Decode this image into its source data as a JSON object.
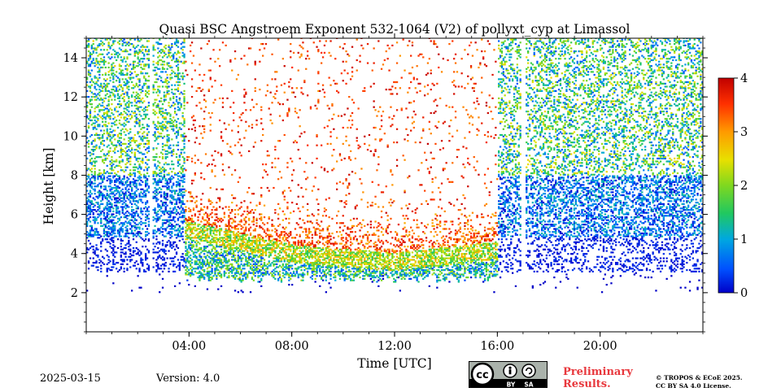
{
  "chart_data": {
    "type": "heatmap",
    "title": "Quasi BSC Angstroem Exponent 532-1064 (V2) of pollyxt_cyp at Limassol",
    "xlabel": "Time [UTC]",
    "ylabel": "Height [km]",
    "xlim": [
      0,
      24
    ],
    "ylim": [
      0,
      15
    ],
    "x_ticks": [
      {
        "value": 4,
        "label": "04:00"
      },
      {
        "value": 8,
        "label": "08:00"
      },
      {
        "value": 12,
        "label": "12:00"
      },
      {
        "value": 16,
        "label": "16:00"
      },
      {
        "value": 20,
        "label": "20:00"
      }
    ],
    "y_ticks": [
      {
        "value": 2,
        "label": "2"
      },
      {
        "value": 4,
        "label": "4"
      },
      {
        "value": 6,
        "label": "6"
      },
      {
        "value": 8,
        "label": "8"
      },
      {
        "value": 10,
        "label": "10"
      },
      {
        "value": 12,
        "label": "12"
      },
      {
        "value": 14,
        "label": "14"
      }
    ],
    "colorbar": {
      "range": [
        0,
        4
      ],
      "colormap": "jet",
      "ticks": [
        {
          "value": 0,
          "label": "0"
        },
        {
          "value": 1,
          "label": "1"
        },
        {
          "value": 2,
          "label": "2"
        },
        {
          "value": 3,
          "label": "3"
        },
        {
          "value": 4,
          "label": "4"
        }
      ]
    },
    "structure": {
      "night_noise_periods_utc": [
        [
          0,
          3.8
        ],
        [
          16.0,
          24
        ]
      ],
      "daytime_high_exponent_period_utc": [
        3.8,
        16.0
      ],
      "aerosol_layer_top_km": [
        [
          4,
          5.6
        ],
        [
          8,
          4.4
        ],
        [
          12,
          4.0
        ],
        [
          16,
          4.6
        ]
      ],
      "aerosol_layer_base_km": 2.7,
      "data_gaps_utc": [
        2.5,
        17.0
      ]
    }
  },
  "footer": {
    "date": "2025-03-15",
    "version": "Version: 4.0",
    "preliminary": [
      "Preliminary",
      "Results."
    ],
    "copyright": [
      "© TROPOS & ECoE 2025.",
      "CC BY SA 4.0 License."
    ],
    "license_badge": {
      "icon": "cc-by-sa-icon",
      "labels": [
        "BY",
        "SA"
      ]
    }
  }
}
